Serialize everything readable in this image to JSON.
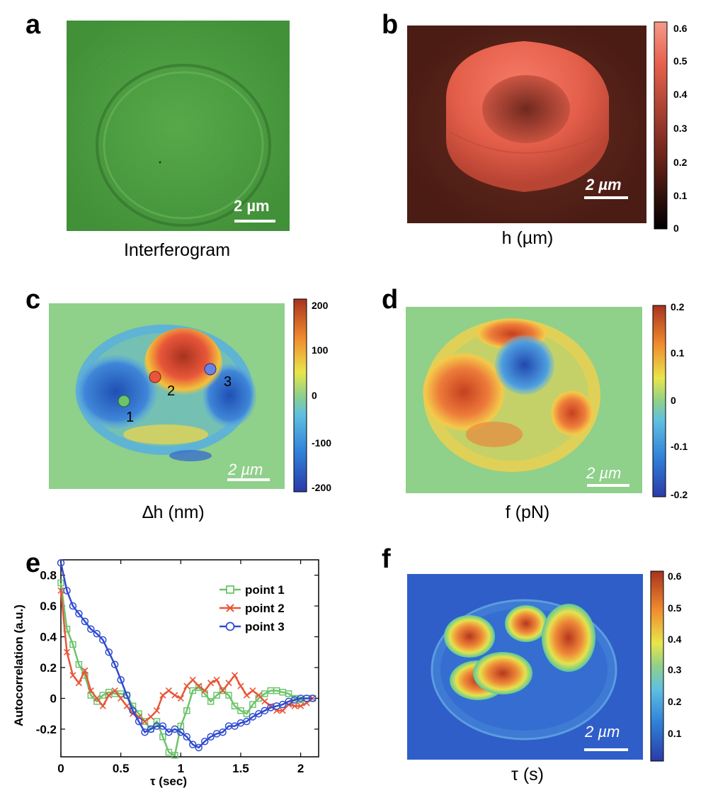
{
  "panels": {
    "a": {
      "letter": "a",
      "caption": "Interferogram",
      "scale_bar": "2 µm"
    },
    "b": {
      "letter": "b",
      "caption": "h (µm)",
      "scale_bar": "2 µm",
      "colorbar_ticks": [
        "0.6",
        "0.5",
        "0.4",
        "0.3",
        "0.2",
        "0.1",
        "0"
      ]
    },
    "c": {
      "letter": "c",
      "caption": "∆h (nm)",
      "scale_bar": "2 µm",
      "colorbar_ticks": [
        "200",
        "100",
        "0",
        "-100",
        "-200"
      ],
      "markers": [
        "1",
        "2",
        "3"
      ]
    },
    "d": {
      "letter": "d",
      "caption": "f (pN)",
      "scale_bar": "2 µm",
      "colorbar_ticks": [
        "0.2",
        "0.1",
        "0",
        "-0.1",
        "-0.2"
      ]
    },
    "e": {
      "letter": "e"
    },
    "f": {
      "letter": "f",
      "caption": "τ (s)",
      "scale_bar": "2 µm",
      "colorbar_ticks": [
        "0.6",
        "0.5",
        "0.4",
        "0.3",
        "0.2",
        "0.1"
      ]
    }
  },
  "colors": {
    "point1": "#6cc46c",
    "point2": "#e8563a",
    "point3": "#2f4bd1",
    "interferogram_green": "#4f9d3c",
    "height_red": "#e8614e",
    "background_green": "#8fd08a",
    "tau_blue": "#2f5ec8"
  },
  "chart_data": {
    "type": "line",
    "xlabel": "τ (sec)",
    "ylabel": "Autocorrelation (a.u.)",
    "xlim": [
      0,
      2.15
    ],
    "ylim": [
      -0.38,
      0.9
    ],
    "xticks": [
      "0",
      "0.5",
      "1",
      "1.5",
      "2"
    ],
    "yticks": [
      "0.8",
      "0.6",
      "0.4",
      "0.2",
      "0",
      "-0.2"
    ],
    "legend_position": "top-right",
    "series": [
      {
        "name": "point 1",
        "marker": "square",
        "x": [
          0.0,
          0.05,
          0.1,
          0.15,
          0.2,
          0.25,
          0.3,
          0.35,
          0.4,
          0.45,
          0.5,
          0.55,
          0.6,
          0.65,
          0.7,
          0.75,
          0.8,
          0.85,
          0.9,
          0.95,
          1.0,
          1.05,
          1.1,
          1.15,
          1.2,
          1.25,
          1.3,
          1.35,
          1.4,
          1.45,
          1.5,
          1.55,
          1.6,
          1.65,
          1.7,
          1.75,
          1.8,
          1.85,
          1.9,
          1.95,
          2.0,
          2.05,
          2.1
        ],
        "values": [
          0.75,
          0.45,
          0.35,
          0.22,
          0.15,
          0.02,
          -0.02,
          0.02,
          0.04,
          0.03,
          0.03,
          0.02,
          -0.05,
          -0.1,
          -0.15,
          -0.2,
          -0.15,
          -0.25,
          -0.35,
          -0.37,
          -0.18,
          -0.08,
          0.05,
          0.07,
          0.03,
          -0.02,
          0.02,
          0.05,
          0.02,
          -0.05,
          -0.08,
          -0.1,
          -0.04,
          0.0,
          0.03,
          0.05,
          0.05,
          0.04,
          0.03,
          0.0,
          -0.01,
          0.0,
          0.0
        ]
      },
      {
        "name": "point 2",
        "marker": "x",
        "x": [
          0.0,
          0.05,
          0.1,
          0.15,
          0.2,
          0.25,
          0.3,
          0.35,
          0.4,
          0.45,
          0.5,
          0.55,
          0.6,
          0.65,
          0.7,
          0.75,
          0.8,
          0.85,
          0.9,
          0.95,
          1.0,
          1.05,
          1.1,
          1.15,
          1.2,
          1.25,
          1.3,
          1.35,
          1.4,
          1.45,
          1.5,
          1.55,
          1.6,
          1.65,
          1.7,
          1.75,
          1.8,
          1.85,
          1.9,
          1.95,
          2.0,
          2.05,
          2.1
        ],
        "values": [
          0.7,
          0.3,
          0.15,
          0.1,
          0.18,
          0.05,
          0.0,
          -0.05,
          0.02,
          0.05,
          0.0,
          -0.05,
          -0.1,
          -0.12,
          -0.15,
          -0.12,
          -0.08,
          0.02,
          0.05,
          0.02,
          0.0,
          0.08,
          0.12,
          0.08,
          0.05,
          0.1,
          0.12,
          0.05,
          0.1,
          0.15,
          0.08,
          0.02,
          0.05,
          0.02,
          -0.02,
          -0.05,
          -0.08,
          -0.08,
          -0.04,
          -0.05,
          -0.05,
          -0.03,
          0.0
        ]
      },
      {
        "name": "point 3",
        "marker": "circle",
        "x": [
          0.0,
          0.05,
          0.1,
          0.15,
          0.2,
          0.25,
          0.3,
          0.35,
          0.4,
          0.45,
          0.5,
          0.55,
          0.6,
          0.65,
          0.7,
          0.75,
          0.8,
          0.85,
          0.9,
          0.95,
          1.0,
          1.05,
          1.1,
          1.15,
          1.2,
          1.25,
          1.3,
          1.35,
          1.4,
          1.45,
          1.5,
          1.55,
          1.6,
          1.65,
          1.7,
          1.75,
          1.8,
          1.85,
          1.9,
          1.95,
          2.0,
          2.05,
          2.1
        ],
        "values": [
          0.88,
          0.7,
          0.6,
          0.55,
          0.5,
          0.45,
          0.42,
          0.38,
          0.3,
          0.22,
          0.12,
          0.02,
          -0.08,
          -0.15,
          -0.22,
          -0.2,
          -0.18,
          -0.18,
          -0.22,
          -0.2,
          -0.22,
          -0.25,
          -0.3,
          -0.32,
          -0.28,
          -0.25,
          -0.23,
          -0.22,
          -0.18,
          -0.18,
          -0.16,
          -0.15,
          -0.12,
          -0.1,
          -0.08,
          -0.06,
          -0.05,
          -0.04,
          -0.02,
          -0.01,
          0.0,
          0.0,
          0.0
        ]
      }
    ]
  }
}
